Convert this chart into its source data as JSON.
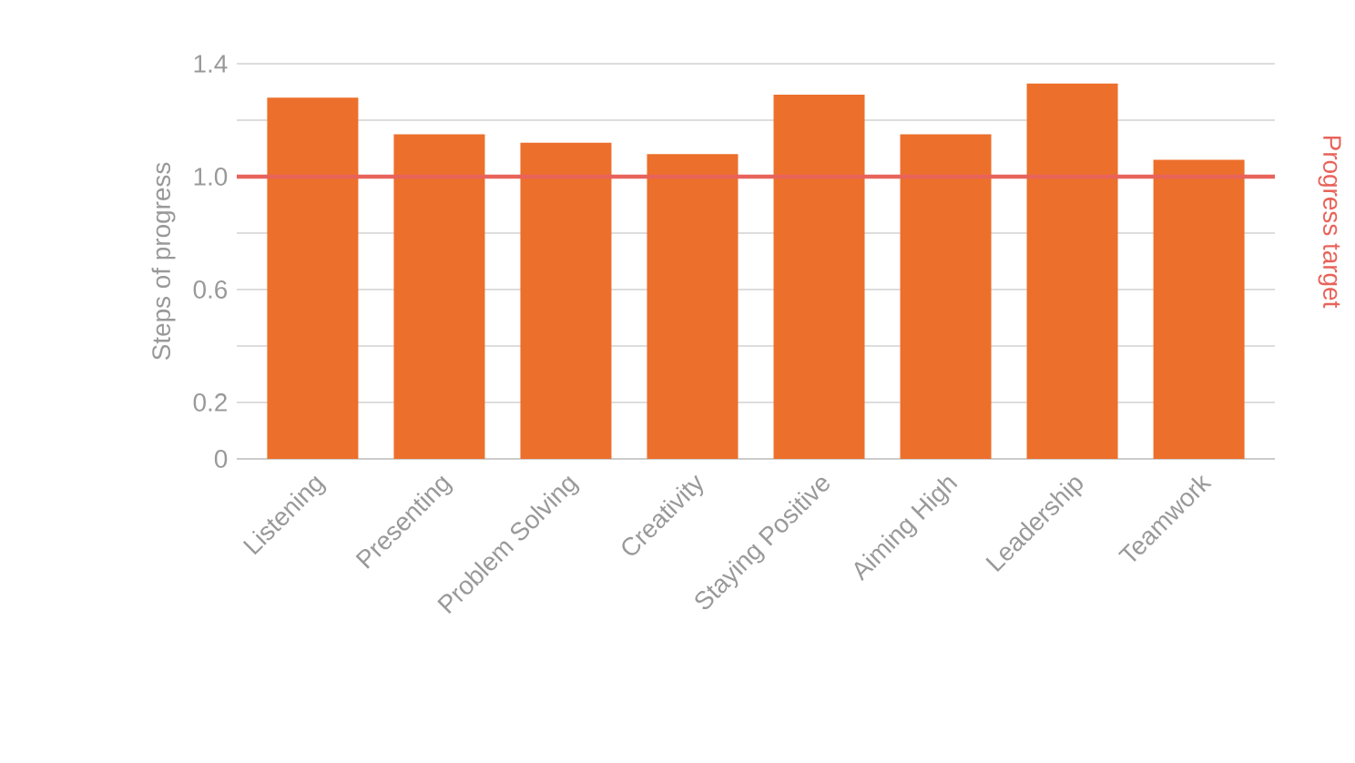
{
  "chart_data": {
    "type": "bar",
    "ylabel": "Steps of progress",
    "categories": [
      "Listening",
      "Presenting",
      "Problem Solving",
      "Creativity",
      "Staying Positive",
      "Aiming High",
      "Leadership",
      "Teamwork"
    ],
    "values": [
      1.28,
      1.15,
      1.12,
      1.08,
      1.29,
      1.15,
      1.33,
      1.06
    ],
    "color": "#ec6f2b",
    "ylim": [
      0,
      1.4
    ],
    "yticks": [
      0,
      0.2,
      {
        "value": 0.4,
        "label": null
      },
      0.6,
      {
        "value": 0.8,
        "label": null
      },
      {
        "value": 1.0,
        "label": "1.0"
      },
      {
        "value": 1.2,
        "label": null
      },
      1.4
    ],
    "grid": "y",
    "ref_lines": [
      {
        "axis": "y",
        "value": 1.0,
        "label": "Progress target",
        "color": "#e8635a"
      }
    ]
  }
}
